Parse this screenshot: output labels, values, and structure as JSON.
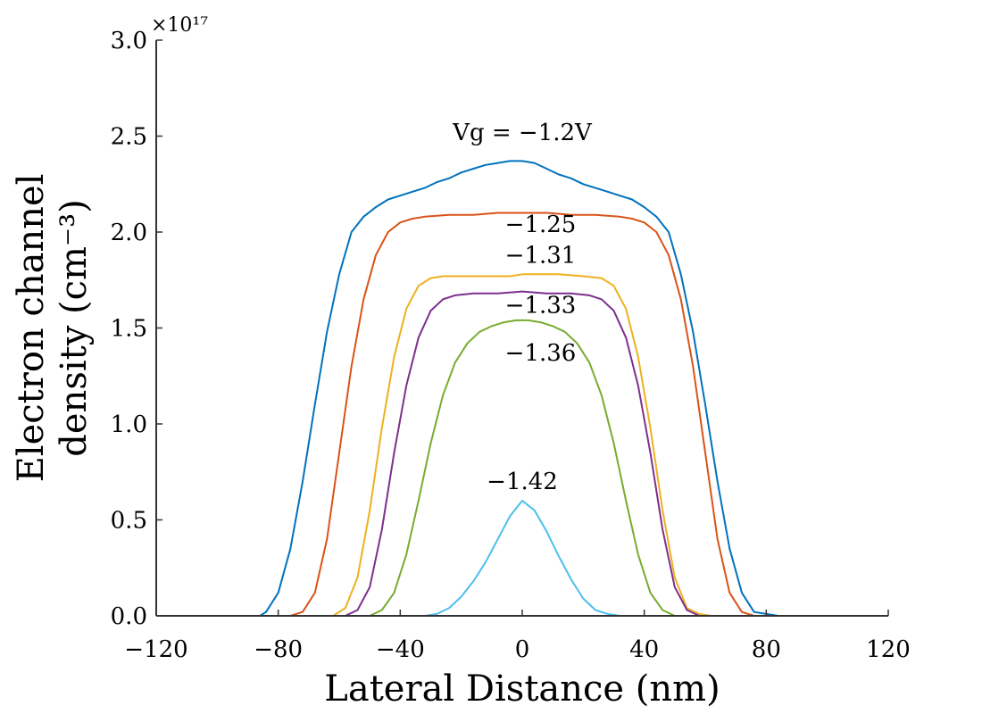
{
  "chart_data": {
    "type": "line",
    "title": "",
    "xlabel": "Lateral Distance (nm)",
    "ylabel_line1": "Electron channel",
    "ylabel_line2": "density (cm⁻³)",
    "xlim": [
      -120,
      120
    ],
    "ylim": [
      0,
      3.0
    ],
    "y_multiplier": "×10¹⁷",
    "x_ticks": [
      -120,
      -80,
      -40,
      0,
      40,
      80,
      120
    ],
    "x_tick_labels": [
      "−120",
      "−80",
      "−40",
      "0",
      "40",
      "80",
      "120"
    ],
    "y_ticks": [
      0,
      0.5,
      1.0,
      1.5,
      2.0,
      2.5,
      3.0
    ],
    "y_tick_labels": [
      "0.0",
      "0.5",
      "1.0",
      "1.5",
      "2.0",
      "2.5",
      "3.0"
    ],
    "grid": false,
    "series": [
      {
        "name": "Vg = −1.2V",
        "label": "Vg = −1.2V",
        "label_at": [
          0,
          2.48
        ],
        "color": "#0072BD",
        "x": [
          -120,
          -86,
          -84,
          -80,
          -76,
          -72,
          -68,
          -64,
          -60,
          -56,
          -52,
          -48,
          -44,
          -40,
          -36,
          -32,
          -28,
          -24,
          -20,
          -16,
          -12,
          -8,
          -4,
          0,
          4,
          8,
          12,
          16,
          20,
          24,
          28,
          32,
          36,
          40,
          44,
          48,
          52,
          56,
          60,
          64,
          68,
          72,
          76,
          80,
          84,
          86,
          120
        ],
        "values": [
          0,
          0,
          0.02,
          0.12,
          0.35,
          0.7,
          1.1,
          1.48,
          1.78,
          2.0,
          2.08,
          2.13,
          2.17,
          2.19,
          2.21,
          2.23,
          2.26,
          2.28,
          2.31,
          2.33,
          2.35,
          2.36,
          2.37,
          2.37,
          2.36,
          2.33,
          2.3,
          2.28,
          2.25,
          2.23,
          2.21,
          2.19,
          2.17,
          2.13,
          2.08,
          2.0,
          1.78,
          1.48,
          1.1,
          0.7,
          0.35,
          0.12,
          0.02,
          0.01,
          0,
          0,
          0
        ]
      },
      {
        "name": "−1.25",
        "label": "−1.25",
        "label_at": [
          6,
          2.0
        ],
        "color": "#D95319",
        "x": [
          -120,
          -76,
          -72,
          -68,
          -64,
          -60,
          -56,
          -52,
          -48,
          -44,
          -40,
          -36,
          -32,
          -24,
          -16,
          -8,
          0,
          8,
          16,
          24,
          32,
          36,
          40,
          44,
          48,
          52,
          56,
          60,
          64,
          68,
          72,
          76,
          120
        ],
        "values": [
          0,
          0,
          0.02,
          0.12,
          0.4,
          0.85,
          1.3,
          1.65,
          1.88,
          2.0,
          2.05,
          2.07,
          2.08,
          2.09,
          2.09,
          2.1,
          2.1,
          2.1,
          2.09,
          2.09,
          2.08,
          2.07,
          2.05,
          2.0,
          1.88,
          1.65,
          1.3,
          0.85,
          0.4,
          0.12,
          0.02,
          0,
          0
        ]
      },
      {
        "name": "−1.31",
        "label": "−1.31",
        "label_at": [
          6,
          1.84
        ],
        "color": "#EDB120",
        "x": [
          -120,
          -62,
          -58,
          -54,
          -50,
          -46,
          -42,
          -38,
          -34,
          -30,
          -26,
          -20,
          -12,
          -4,
          0,
          4,
          12,
          20,
          26,
          30,
          34,
          38,
          42,
          46,
          50,
          54,
          58,
          62,
          120
        ],
        "values": [
          0,
          0,
          0.04,
          0.2,
          0.55,
          0.98,
          1.35,
          1.6,
          1.72,
          1.76,
          1.77,
          1.77,
          1.77,
          1.77,
          1.78,
          1.78,
          1.78,
          1.77,
          1.76,
          1.72,
          1.6,
          1.35,
          0.98,
          0.55,
          0.2,
          0.04,
          0.01,
          0,
          0
        ]
      },
      {
        "name": "−1.33",
        "label": "−1.33",
        "label_at": [
          6,
          1.58
        ],
        "color": "#7E2F8E",
        "x": [
          -120,
          -58,
          -54,
          -50,
          -46,
          -42,
          -38,
          -34,
          -30,
          -26,
          -22,
          -16,
          -8,
          0,
          8,
          16,
          22,
          26,
          30,
          34,
          38,
          42,
          46,
          50,
          54,
          58,
          120
        ],
        "values": [
          0,
          0,
          0.03,
          0.15,
          0.45,
          0.85,
          1.2,
          1.45,
          1.59,
          1.65,
          1.67,
          1.68,
          1.68,
          1.69,
          1.68,
          1.68,
          1.67,
          1.65,
          1.59,
          1.45,
          1.2,
          0.85,
          0.45,
          0.15,
          0.03,
          0,
          0
        ]
      },
      {
        "name": "−1.36",
        "label": "−1.36",
        "label_at": [
          6,
          1.33
        ],
        "color": "#77AC30",
        "x": [
          -120,
          -50,
          -46,
          -42,
          -38,
          -34,
          -30,
          -26,
          -22,
          -18,
          -14,
          -10,
          -6,
          -2,
          0,
          2,
          6,
          10,
          14,
          18,
          22,
          26,
          30,
          34,
          38,
          42,
          46,
          50,
          120
        ],
        "values": [
          0,
          0,
          0.03,
          0.12,
          0.32,
          0.6,
          0.9,
          1.15,
          1.32,
          1.42,
          1.48,
          1.51,
          1.53,
          1.54,
          1.54,
          1.54,
          1.53,
          1.51,
          1.48,
          1.42,
          1.32,
          1.15,
          0.9,
          0.6,
          0.32,
          0.12,
          0.03,
          0,
          0
        ]
      },
      {
        "name": "−1.42",
        "label": "−1.42",
        "label_at": [
          0,
          0.66
        ],
        "color": "#4DBEEE",
        "x": [
          -120,
          -32,
          -28,
          -24,
          -20,
          -16,
          -12,
          -8,
          -4,
          0,
          4,
          8,
          12,
          16,
          20,
          24,
          28,
          32,
          120
        ],
        "values": [
          0,
          0,
          0.01,
          0.04,
          0.1,
          0.18,
          0.28,
          0.4,
          0.52,
          0.6,
          0.55,
          0.44,
          0.31,
          0.19,
          0.09,
          0.03,
          0.01,
          0,
          0
        ]
      }
    ]
  }
}
